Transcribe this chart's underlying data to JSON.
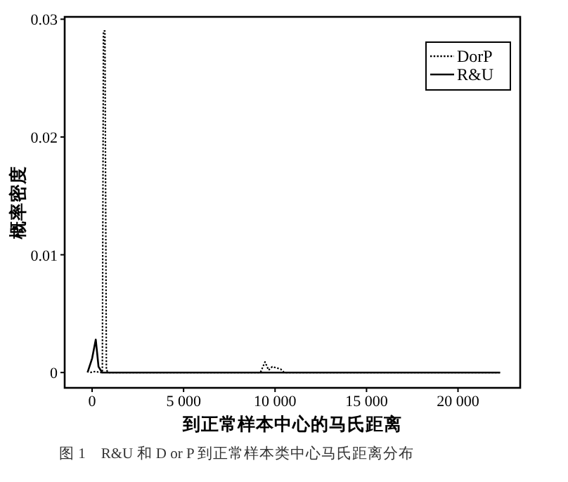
{
  "chart_data": {
    "type": "line",
    "xlabel": "到正常样本中心的马氏距离",
    "ylabel": "概率密度",
    "annotations": [
      "图 1　R&U 和 D or P 到正常样本类中心马氏距离分布"
    ],
    "xlim": [
      -1500,
      23400
    ],
    "ylim": [
      -0.0013,
      0.0302
    ],
    "xticks": [
      0,
      {
        "value": 5000,
        "label": "5 000"
      },
      {
        "value": 10000,
        "label": "10 000"
      },
      {
        "value": 15000,
        "label": "15 000"
      },
      {
        "value": 20000,
        "label": "20 000"
      }
    ],
    "yticks": [
      0,
      0.01,
      0.02,
      0.03
    ],
    "grid": false,
    "legend": "top right",
    "series": [
      {
        "name": "DorP",
        "color": "#000000",
        "line_style": "dotted",
        "x": [
          -100,
          200,
          400,
          560,
          620,
          700,
          780,
          900,
          9200,
          9450,
          9650,
          9850,
          10050,
          10300,
          10500,
          22300
        ],
        "values": [
          0,
          0.0001,
          0,
          0,
          0.029,
          0.029,
          0.0002,
          0,
          0,
          0.0009,
          0.0002,
          0.0005,
          0.0004,
          0.0003,
          0,
          0
        ]
      },
      {
        "name": "R&U",
        "color": "#000000",
        "line_style": "solid",
        "x": [
          -250,
          0,
          200,
          350,
          550,
          22300
        ],
        "values": [
          0,
          0.0012,
          0.0028,
          0.0005,
          0,
          0
        ]
      }
    ]
  }
}
